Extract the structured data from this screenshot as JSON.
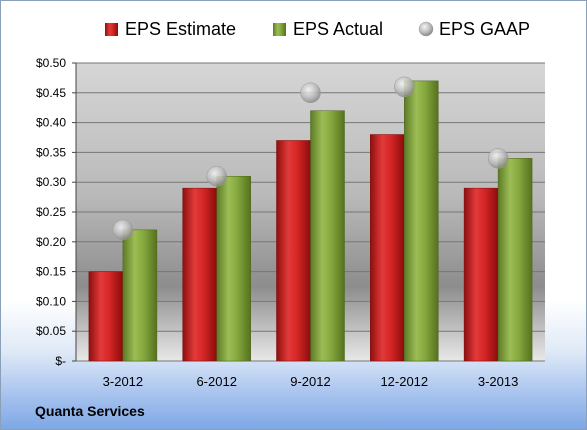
{
  "footer": {
    "company": "Quanta Services"
  },
  "colors": {
    "estimate": "#cc1f1f",
    "actual": "#7fa23a",
    "gaap": "#c0c0c0"
  },
  "chart_data": {
    "type": "bar",
    "categories": [
      "3-2012",
      "6-2012",
      "9-2012",
      "12-2012",
      "3-2013"
    ],
    "series": [
      {
        "name": "EPS Estimate",
        "kind": "bar",
        "values": [
          0.15,
          0.29,
          0.37,
          0.38,
          0.29
        ]
      },
      {
        "name": "EPS Actual",
        "kind": "bar",
        "values": [
          0.22,
          0.31,
          0.42,
          0.47,
          0.34
        ]
      },
      {
        "name": "EPS GAAP",
        "kind": "marker",
        "values": [
          0.22,
          0.31,
          0.45,
          0.46,
          0.34
        ]
      }
    ],
    "ylim": [
      0,
      0.5
    ],
    "yticks": [
      "$-",
      "$0.05",
      "$0.10",
      "$0.15",
      "$0.20",
      "$0.25",
      "$0.30",
      "$0.35",
      "$0.40",
      "$0.45",
      "$0.50"
    ],
    "title": "",
    "xlabel": "",
    "ylabel": "",
    "grid": true,
    "legend_position": "top"
  }
}
